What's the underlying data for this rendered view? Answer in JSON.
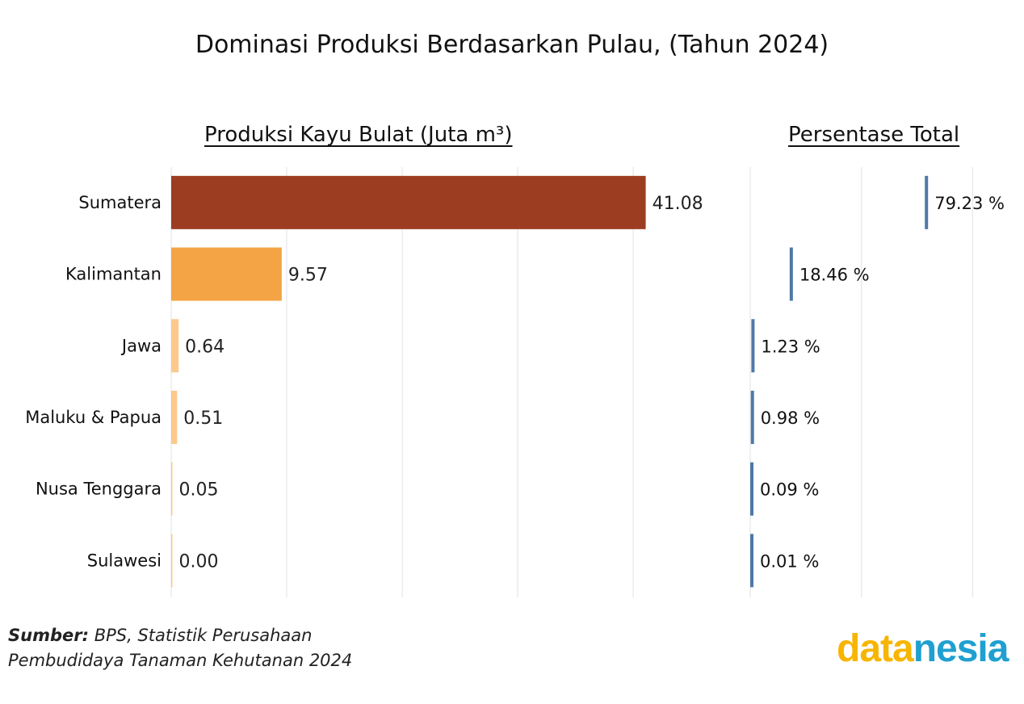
{
  "chart_data": [
    {
      "type": "bar",
      "title": "Dominasi Produksi Berdasarkan Pulau, (Tahun 2024)",
      "subtitle": "Produksi Kayu Bulat (Juta m³)",
      "categories": [
        "Sumatera",
        "Kalimantan",
        "Jawa",
        "Maluku & Papua",
        "Nusa Tenggara",
        "Sulawesi"
      ],
      "values": [
        41.08,
        9.57,
        0.64,
        0.51,
        0.05,
        0.0
      ],
      "value_labels": [
        "41.08",
        "9.57",
        "0.64",
        "0.51",
        "0.05",
        "0.00"
      ],
      "colors": [
        "#9c3d22",
        "#f4a445",
        "#fbc98c",
        "#fbc98c",
        "#fbc98c",
        "#fbc98c"
      ],
      "xlim": [
        0,
        48.8
      ],
      "gridlines": [
        0,
        10,
        20,
        30,
        40
      ],
      "orientation": "horizontal"
    },
    {
      "type": "bar",
      "subtitle": "Persentase Total",
      "categories": [
        "Sumatera",
        "Kalimantan",
        "Jawa",
        "Maluku & Papua",
        "Nusa Tenggara",
        "Sulawesi"
      ],
      "values": [
        79.23,
        18.46,
        1.23,
        0.98,
        0.09,
        0.01
      ],
      "value_labels": [
        "79.23 %",
        "18.46 %",
        "1.23 %",
        "0.98 %",
        "0.09 %",
        "0.01 %"
      ],
      "color": "#4e79a7",
      "xlim": [
        0,
        122
      ],
      "gridlines": [
        0,
        50,
        100
      ],
      "mark": "tick"
    }
  ],
  "source": {
    "label": "Sumber:",
    "text": "BPS, Statistik Perusahaan",
    "text2": "Pembudidaya Tanaman Kehutanan 2024"
  },
  "logo": {
    "part1": "data",
    "part2": "nesia",
    "color1": "#f7b500",
    "color2": "#1fa0d0"
  }
}
